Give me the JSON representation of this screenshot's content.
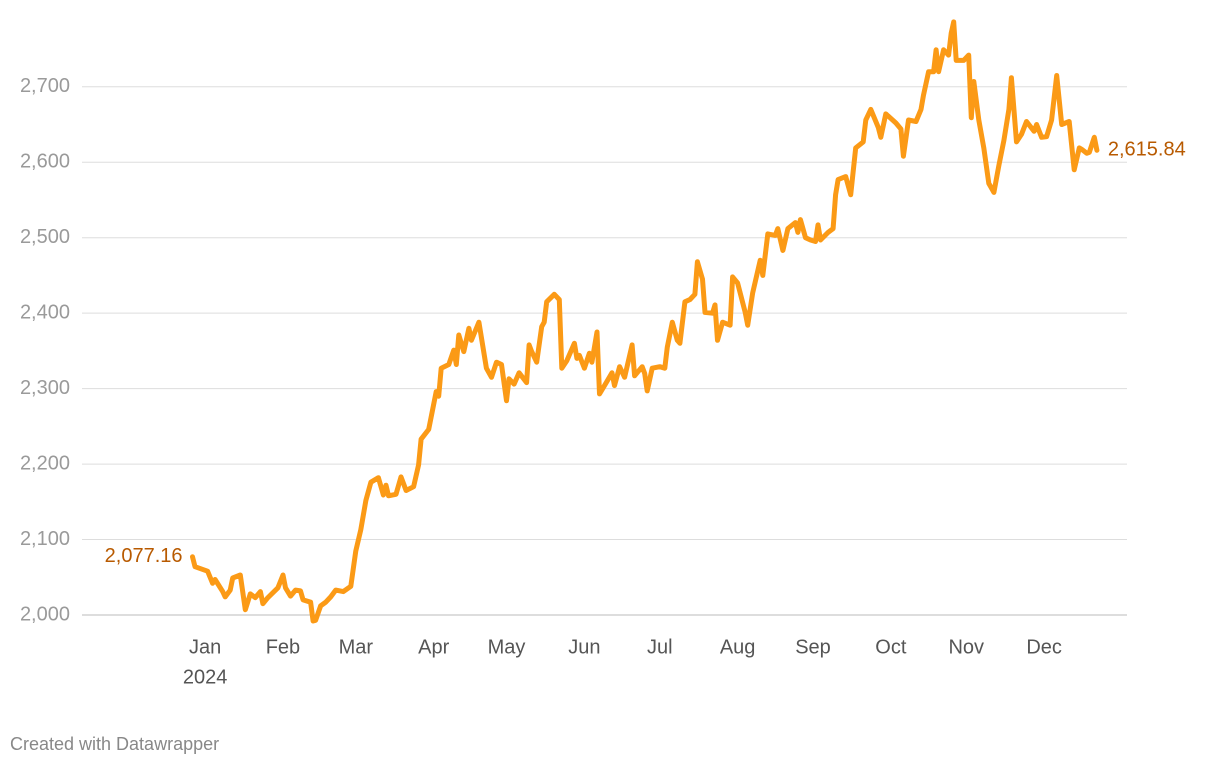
{
  "chart_data": {
    "type": "line",
    "x_year_label": "2024",
    "footer": "Created with Datawrapper",
    "color": "#fb9a16",
    "grid": true,
    "xlim": [
      -42,
      374
    ],
    "ylim": [
      2000,
      2815
    ],
    "xticks": [
      {
        "value": 7,
        "label": "Jan"
      },
      {
        "value": 38,
        "label": "Feb"
      },
      {
        "value": 67,
        "label": "Mar"
      },
      {
        "value": 98,
        "label": "Apr"
      },
      {
        "value": 127,
        "label": "May"
      },
      {
        "value": 158,
        "label": "Jun"
      },
      {
        "value": 188,
        "label": "Jul"
      },
      {
        "value": 219,
        "label": "Aug"
      },
      {
        "value": 249,
        "label": "Sep"
      },
      {
        "value": 280,
        "label": "Oct"
      },
      {
        "value": 310,
        "label": "Nov"
      },
      {
        "value": 341,
        "label": "Dec"
      }
    ],
    "yticks": [
      {
        "value": 2000,
        "label": "2,000"
      },
      {
        "value": 2100,
        "label": "2,100"
      },
      {
        "value": 2200,
        "label": "2,200"
      },
      {
        "value": 2300,
        "label": "2,300"
      },
      {
        "value": 2400,
        "label": "2,400"
      },
      {
        "value": 2500,
        "label": "2,500"
      },
      {
        "value": 2600,
        "label": "2,600"
      },
      {
        "value": 2700,
        "label": "2,700"
      }
    ],
    "x": [
      2,
      3,
      8,
      10,
      11,
      14,
      15,
      17,
      18,
      21,
      23,
      25,
      27,
      29,
      30,
      32,
      36,
      38,
      39,
      41,
      43,
      45,
      46,
      49,
      50,
      51,
      53,
      55,
      57,
      59,
      62,
      65,
      67,
      69,
      71,
      73,
      76,
      78,
      79,
      80,
      83,
      85,
      87,
      90,
      92,
      93,
      96,
      99,
      100,
      101,
      104,
      106,
      107,
      108,
      110,
      112,
      113,
      116,
      119,
      121,
      123,
      125,
      127,
      128,
      130,
      132,
      135,
      136,
      137,
      139,
      141,
      142,
      143,
      146,
      148,
      149,
      151,
      154,
      155,
      156,
      158,
      160,
      161,
      163,
      164,
      166,
      169,
      170,
      172,
      174,
      177,
      178,
      181,
      182,
      183,
      185,
      188,
      190,
      191,
      193,
      195,
      196,
      198,
      200,
      202,
      203,
      205,
      206,
      209,
      210,
      211,
      213,
      216,
      217,
      219,
      222,
      223,
      225,
      228,
      229,
      231,
      234,
      235,
      237,
      239,
      242,
      243,
      244,
      246,
      248,
      250,
      251,
      252,
      255,
      257,
      258,
      259,
      262,
      264,
      266,
      269,
      270,
      272,
      275,
      276,
      278,
      282,
      284,
      285,
      287,
      290,
      292,
      293,
      295,
      297,
      298,
      299,
      301,
      303,
      304,
      305,
      306,
      309,
      311,
      312,
      313,
      315,
      317,
      319,
      321,
      323,
      325,
      327,
      328,
      330,
      332,
      334,
      337,
      338,
      340,
      342,
      344,
      346,
      348,
      351,
      353,
      355,
      356,
      358,
      359,
      361,
      362
    ],
    "values": [
      2077.16,
      2064,
      2058,
      2042,
      2047,
      2031,
      2024,
      2033,
      2049,
      2053,
      2007,
      2028,
      2023,
      2031,
      2015,
      2023,
      2036,
      2053,
      2036,
      2025,
      2033,
      2032,
      2020,
      2017,
      1992,
      1993,
      2012,
      2017,
      2024,
      2033,
      2031,
      2038,
      2085,
      2113,
      2152,
      2176,
      2182,
      2159,
      2172,
      2158,
      2160,
      2183,
      2165,
      2170,
      2199,
      2233,
      2246,
      2296,
      2290,
      2327,
      2332,
      2351,
      2332,
      2371,
      2349,
      2380,
      2364,
      2388,
      2327,
      2315,
      2335,
      2332,
      2284,
      2313,
      2306,
      2321,
      2308,
      2358,
      2349,
      2335,
      2382,
      2388,
      2415,
      2425,
      2418,
      2327,
      2337,
      2360,
      2340,
      2344,
      2327,
      2347,
      2335,
      2375,
      2293,
      2304,
      2321,
      2304,
      2329,
      2315,
      2358,
      2317,
      2329,
      2320,
      2297,
      2327,
      2329,
      2327,
      2355,
      2388,
      2364,
      2360,
      2415,
      2418,
      2425,
      2468,
      2445,
      2401,
      2400,
      2411,
      2364,
      2388,
      2384,
      2448,
      2440,
      2401,
      2384,
      2427,
      2470,
      2450,
      2505,
      2503,
      2512,
      2483,
      2512,
      2520,
      2507,
      2524,
      2500,
      2497,
      2495,
      2517,
      2497,
      2507,
      2512,
      2557,
      2577,
      2581,
      2557,
      2619,
      2627,
      2656,
      2670,
      2646,
      2633,
      2664,
      2652,
      2644,
      2608,
      2656,
      2654,
      2670,
      2689,
      2720,
      2720,
      2749,
      2720,
      2749,
      2742,
      2771,
      2786,
      2735,
      2735,
      2742,
      2659,
      2707,
      2656,
      2619,
      2572,
      2560,
      2596,
      2629,
      2670,
      2712,
      2627,
      2637,
      2654,
      2641,
      2650,
      2633,
      2634,
      2656,
      2715,
      2650,
      2654,
      2590,
      2619,
      2617,
      2612,
      2613,
      2633,
      2615.84
    ],
    "value_labels": [
      "2,077.16",
      null,
      null,
      null,
      null,
      null,
      null,
      null,
      null,
      null,
      null,
      null,
      null,
      null,
      null,
      null,
      null,
      null,
      null,
      null,
      null,
      null,
      null,
      null,
      null,
      null,
      null,
      null,
      null,
      null,
      null,
      null,
      null,
      null,
      null,
      null,
      null,
      null,
      null,
      null,
      null,
      null,
      null,
      null,
      null,
      null,
      null,
      null,
      null,
      null,
      null,
      null,
      null,
      null,
      null,
      null,
      null,
      null,
      null,
      null,
      null,
      null,
      null,
      null,
      null,
      null,
      null,
      null,
      null,
      null,
      null,
      null,
      null,
      null,
      null,
      null,
      null,
      null,
      null,
      null,
      null,
      null,
      null,
      null,
      null,
      null,
      null,
      null,
      null,
      null,
      null,
      null,
      null,
      null,
      null,
      null,
      null,
      null,
      null,
      null,
      null,
      null,
      null,
      null,
      null,
      null,
      null,
      null,
      null,
      null,
      null,
      null,
      null,
      null,
      null,
      null,
      null,
      null,
      null,
      null,
      null,
      null,
      null,
      null,
      null,
      null,
      null,
      null,
      null,
      null,
      null,
      null,
      null,
      null,
      null,
      null,
      null,
      null,
      null,
      null,
      null,
      null,
      null,
      null,
      null,
      null,
      null,
      null,
      null,
      null,
      null,
      null,
      null,
      null,
      null,
      null,
      null,
      null,
      null,
      null,
      null,
      null,
      null,
      null,
      null,
      null,
      null,
      null,
      null,
      null,
      null,
      null,
      null,
      null,
      null,
      null,
      null,
      null,
      null,
      null,
      null,
      null,
      null,
      null,
      null,
      null,
      null,
      null,
      null,
      null,
      null,
      "2,615.84"
    ]
  }
}
